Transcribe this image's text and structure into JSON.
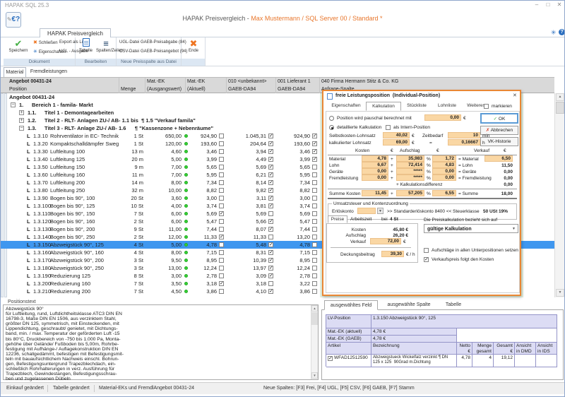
{
  "titlebar": {
    "title": "HAPAK SQL 25.3",
    "minimize": "–",
    "maximize": "□",
    "close": "✕"
  },
  "header": {
    "app": "HAPAK Preisvergleich - ",
    "session": "Max Mustermann / SQL Server 00 / Standard *",
    "logo_glyph": "€?"
  },
  "ribbon": {
    "tab": "HAPAK Preisvergleich",
    "speichern": "Speichern",
    "schliessen": "Schließen",
    "eigenschaften": "Eigenschaften",
    "export_als_liste": "Export als Liste",
    "ugl_ausgabe": "UGL - Ausgabe",
    "tabelle": "Tabelle",
    "spalten_zeilen": "Spalten/Zeilen",
    "ugl_datei": "UGL-Datei",
    "csv_datei": "CSV-Datei",
    "gaeb_preisabgabe": "GAEB-Preisabgabe (84)",
    "gaeb_preisangebot": "GAEB-Preisangebot (94)",
    "ende": "Ende",
    "groups": {
      "dokument": "Dokument",
      "bearbeiten": "Bearbeiten",
      "neue_preisspalte": "Neue Preisspalte aus Datei"
    }
  },
  "subtabs": {
    "material": "Material",
    "fremdleistungen": "Fremdleistungen"
  },
  "table": {
    "header_row1": {
      "c0": "Angebot 00431-24",
      "c2": "Mat.-EK",
      "c3": "Mat.-EK",
      "c4": "010 <unbekannt>",
      "c5": "001 Lieferant 1",
      "c6": "040 Firma Hermann Stitz & Co. KG"
    },
    "header_row2": {
      "c0": "Position",
      "c1": "Menge",
      "c2": "(Ausgangswert)",
      "c3": "(Aktuell)",
      "c4": "GAEB-DA94",
      "c5": "GAEB-DA94",
      "c6": "Anfrage-Spalte"
    },
    "root": "Angebot 00431-24",
    "tree": [
      {
        "expand": "-",
        "num": "1.",
        "text": "Bereich 1 - famila- Markt",
        "indent": 0
      },
      {
        "expand": "+",
        "num": "1.1.",
        "text": "Titel 1 - Demontagearbeiten",
        "indent": 1
      },
      {
        "expand": "+",
        "num": "1.2.",
        "text": "Titel 2 - RLT- Anlagen ZU-/ AB- 1.1 bis  ¶ 1.5 \"Verkauf famila\"",
        "indent": 1
      },
      {
        "expand": "-",
        "num": "1.3.",
        "text": "Titel 3 - RLT- Anlage ZU-/ AB- 1.6      ¶ \"Kassenzone + Nebenräume\"",
        "indent": 1
      }
    ],
    "rows": [
      {
        "id": "1.3.10",
        "desc": "Rohrventilator in EC- Technik, Helios, F",
        "qty": "1 St",
        "v1": "650,00",
        "v2": "924,90",
        "c2": false,
        "v3": "1.045,31",
        "c3": true,
        "v4": "924,90",
        "c4": true,
        "sel": false
      },
      {
        "id": "1.3.20",
        "desc": "Kompaktschalldämpfer Swegon, CLA-A",
        "qty": "1 St",
        "v1": "120,00",
        "v2": "193,60",
        "c2": false,
        "v3": "204,64",
        "c3": true,
        "v4": "193,60",
        "c4": true,
        "sel": false
      },
      {
        "id": "1.3.30",
        "desc": "Luftleitung 100",
        "qty": "13 m",
        "v1": "4,60",
        "v2": "3,46",
        "c2": false,
        "v3": "3,94",
        "c3": true,
        "v4": "3,46",
        "c4": true,
        "sel": false
      },
      {
        "id": "1.3.40",
        "desc": "Luftleitung 125",
        "qty": "20 m",
        "v1": "5,00",
        "v2": "3,99",
        "c2": false,
        "v3": "4,49",
        "c3": true,
        "v4": "3,99",
        "c4": true,
        "sel": false
      },
      {
        "id": "1.3.50",
        "desc": "Luftleitung 150",
        "qty": "9 m",
        "v1": "7,00",
        "v2": "5,65",
        "c2": false,
        "v3": "5,69",
        "c3": true,
        "v4": "5,65",
        "c4": false,
        "sel": false
      },
      {
        "id": "1.3.60",
        "desc": "Luftleitung 160",
        "qty": "11 m",
        "v1": "7,00",
        "v2": "5,95",
        "c2": false,
        "v3": "6,21",
        "c3": true,
        "v4": "5,95",
        "c4": false,
        "sel": false
      },
      {
        "id": "1.3.70",
        "desc": "Luftleitung 200",
        "qty": "14 m",
        "v1": "8,00",
        "v2": "7,34",
        "c2": false,
        "v3": "8,14",
        "c3": true,
        "v4": "7,34",
        "c4": false,
        "sel": false
      },
      {
        "id": "1.3.80",
        "desc": "Luftleitung 250",
        "qty": "32 m",
        "v1": "10,00",
        "v2": "8,82",
        "c2": false,
        "v3": "9,82",
        "c3": true,
        "v4": "8,82",
        "c4": false,
        "sel": false
      },
      {
        "id": "1.3.90",
        "desc": "Bogen bis 90°, 100",
        "qty": "20 St",
        "v1": "3,60",
        "v2": "3,00",
        "c2": false,
        "v3": "3,11",
        "c3": true,
        "v4": "3,00",
        "c4": false,
        "sel": false
      },
      {
        "id": "1.3.100",
        "desc": "Bogen bis 90°, 125",
        "qty": "10 St",
        "v1": "4,00",
        "v2": "3,74",
        "c2": false,
        "v3": "3,81",
        "c3": true,
        "v4": "3,74",
        "c4": false,
        "sel": false
      },
      {
        "id": "1.3.110",
        "desc": "Bogen bis 90°, 150",
        "qty": "7 St",
        "v1": "6,00",
        "v2": "5,69",
        "c2": true,
        "v3": "5,69",
        "c3": false,
        "v4": "5,69",
        "c4": false,
        "sel": false
      },
      {
        "id": "1.3.120",
        "desc": "Bogen bis 90°, 160",
        "qty": "2 St",
        "v1": "6,00",
        "v2": "5,47",
        "c2": false,
        "v3": "5,66",
        "c3": true,
        "v4": "5,47",
        "c4": false,
        "sel": false
      },
      {
        "id": "1.3.130",
        "desc": "Bogen bis 90°, 200",
        "qty": "9 St",
        "v1": "11,00",
        "v2": "7,44",
        "c2": false,
        "v3": "8,07",
        "c3": true,
        "v4": "7,44",
        "c4": false,
        "sel": false
      },
      {
        "id": "1.3.140",
        "desc": "Bogen bis 90°, 250",
        "qty": "2 St",
        "v1": "12,00",
        "v2": "11,33",
        "c2": true,
        "v3": "11,33",
        "c3": false,
        "v4": "13,20",
        "c4": false,
        "sel": false
      },
      {
        "id": "1.3.150",
        "desc": "Abzweigstück 90°, 125",
        "qty": "4 St",
        "v1": "5,00",
        "v2": "4,78",
        "c2": false,
        "v3": "5,48",
        "c3": true,
        "v4": "4,78",
        "c4": false,
        "sel": true
      },
      {
        "id": "1.3.160",
        "desc": "Abzweigstück 90°, 160",
        "qty": "4 St",
        "v1": "8,00",
        "v2": "7,15",
        "c2": false,
        "v3": "8,31",
        "c3": true,
        "v4": "7,15",
        "c4": false,
        "sel": false
      },
      {
        "id": "1.3.170",
        "desc": "Abzweigstück 90°, 200",
        "qty": "3 St",
        "v1": "9,50",
        "v2": "8,95",
        "c2": false,
        "v3": "10,39",
        "c3": true,
        "v4": "8,95",
        "c4": false,
        "sel": false
      },
      {
        "id": "1.3.180",
        "desc": "Abzweigstück 90°, 250",
        "qty": "3 St",
        "v1": "13,00",
        "v2": "12,24",
        "c2": false,
        "v3": "13,97",
        "c3": true,
        "v4": "12,24",
        "c4": false,
        "sel": false
      },
      {
        "id": "1.3.190",
        "desc": "Reduzierung 125",
        "qty": "8 St",
        "v1": "3,00",
        "v2": "2,78",
        "c2": false,
        "v3": "3,09",
        "c3": true,
        "v4": "2,78",
        "c4": false,
        "sel": false
      },
      {
        "id": "1.3.200",
        "desc": "Reduzierung 160",
        "qty": "7 St",
        "v1": "3,50",
        "v2": "3,18",
        "c2": true,
        "v3": "3,18",
        "c3": false,
        "v4": "3,22",
        "c4": false,
        "sel": false
      },
      {
        "id": "1.3.210",
        "desc": "Reduzierung 200",
        "qty": "7 St",
        "v1": "4,50",
        "v2": "3,86",
        "c2": false,
        "v3": "4,10",
        "c3": true,
        "v4": "3,86",
        "c4": false,
        "sel": false
      }
    ]
  },
  "dialog": {
    "title": "freie Leistungsposition  (Individual-Position)",
    "close": "✕",
    "tabs": [
      "Eigenschaften",
      "Kalkulation",
      "Stückliste",
      "Lohnliste",
      "Weiteres"
    ],
    "markieren": "markieren",
    "pauschal_label": "Position wird pauschal berechnet mit",
    "pauschal_value": "0,00",
    "euro": "€",
    "ok": "OK",
    "abbrechen": "Abbrechen",
    "vk_historie": "VK-Historie",
    "detailliert_label": "detaillierte Kalkulation",
    "intern_label": "als Intern-Position",
    "selbstkosten_label": "Selbstkosten-Lohnsatz",
    "selbstkosten_value": "40,02",
    "zeitbedarf_label": "Zeitbedarf",
    "zeitbedarf_value": "10",
    "zeitbedarf_unit": "min",
    "kalk_lohnsatz_label": "kalkulierter Lohnsatz",
    "kalk_lohnsatz_value": "69,00",
    "eq": "=",
    "zeit_h_value": "0,16667",
    "zeit_h_unit": "h",
    "plus": "+",
    "pct": "%",
    "col_kosten": "Kosten",
    "col_aufschlag": "Aufschlag",
    "col_verkauf": "Verkauf",
    "cost_rows": [
      {
        "label": "Material",
        "kosten": "4,78",
        "aufschlag": "35,983",
        "betrag": "1,72",
        "eq_label": "= Material",
        "verkauf": "6,50",
        "vk_field": true
      },
      {
        "label": "Lohn",
        "kosten": "6,67",
        "aufschlag": "72,414",
        "betrag": "4,83",
        "eq_label": "= Lohn",
        "verkauf": "11,50",
        "vk_field": false
      },
      {
        "label": "Geräte",
        "kosten": "0,00",
        "aufschlag": "*****",
        "betrag": "0,00",
        "eq_label": "= Geräte",
        "verkauf": "0,00",
        "vk_field": false
      },
      {
        "label": "Fremdleistung",
        "kosten": "0,00",
        "aufschlag": "*****",
        "betrag": "0,00",
        "eq_label": "= Fremdleistung",
        "verkauf": "0,00",
        "vk_field": false
      }
    ],
    "kalkdiff_label": "+ Kalkulationsdifferenz",
    "kalkdiff_value": "0,00",
    "summe": {
      "label": "Summe Kosten",
      "kosten": "11,45",
      "aufschlag": "57,205",
      "betrag": "6,55",
      "eq_label": "= Summe",
      "verkauf": "18,00"
    },
    "ust_group": "Umsatzsteuer und Kontenzuordnung",
    "erloeskonto_label": "Erlöskonto",
    "standard_erloeskonto": ">> Standarderlöskonto 8400 <<",
    "steuerklasse_label": "Steuerklasse",
    "steuerklasse_value": "50 USt 19%",
    "preise_tab": "Preise",
    "arbeitszeit_tab": "Arbeitszeit",
    "bei_label": "bei",
    "bei_value": "4 St",
    "kosten_label": "Kosten",
    "kosten_value": "45,80 €",
    "aufschlag_label": "Aufschlag",
    "aufschlag_value": "26,20 €",
    "verkauf_label": "Verkauf",
    "verkauf_value": "72,00",
    "deckungsbeitrag_label": "Deckungsbeitrag",
    "deckungsbeitrag_value": "39,30",
    "deckungsbeitrag_unit": "€ / h",
    "preiskalk_label": "Die Preiskalkulation bezieht sich auf",
    "preiskalk_value": "gültige Kalkulation",
    "cb1_label": "Aufschläge in allen Unterpositionen setzen",
    "cb2_label": "Verkaufspreis folgt den Kosten"
  },
  "positionstext": {
    "label": "Positionstext",
    "text": "Abzweigstück 90°\nfür Luftleitung, rund, Luftdichtheitsklasse ATC3 DIN EN\n16798-3, Maße DIN EN 1506, aus verzinktem Stahl,\ngrößter DN 125, symmetrisch, mit Einsteckenden, mit\nLippendichtung, geschraubt/ genietet, mit Dichtungs-\nband, min. / max. Temperatur der geförderten Luft -15\nbis 80°C, Druckbereich von -750 bis 1.000 Pa, Monta-\ngehöhe über Gelände/ Fußboden bis 5,00m, Rohrbe-\nfestigung mit Aufhänge-/ Auflagekonstruktion DIN EN\n12236, schallgedämmt, befestigen mit Befestigungsmit-\nteln mit bauaufsichtlichem Nachweis einschl. Bohrun-\ngen, Befestigungsuntergrund Trapezblechdach, ein-\nschließlich Rohrhalterungen in verz. Ausführung für\nTrapezblech, Gewindestangen, Befestigungsschrau-\nben und zugelassenen Dübeln"
  },
  "detail": {
    "tabs": [
      "ausgewähltes Feld",
      "ausgewählte Spalte",
      "Tabelle"
    ],
    "lv_label": "LV-Position",
    "lv_value": "1.3.150 Abzweigstück 90°, 125",
    "matek_aktuell_label": "Mat.-EK (aktuell)",
    "matek_aktuell_value": "4,78 €",
    "matek_gaeb_label": "Mat.-EK (GAEB)",
    "matek_gaeb_value": "4,78 €",
    "col_artikel": "Artikel",
    "col_bezeichnung": "Bezeichnung",
    "col_netto": "Netto\n€",
    "col_menge": "Menge\ngesamt",
    "col_gesamt": "Gesamt\n€",
    "col_dmd": "Ansicht\nin DMD",
    "col_ids": "Ansicht\nin IDS",
    "article": {
      "artikel": "WFAD12512590",
      "bezeichnung": "Abzweigstueck Wickelfalz verzinkt ¶ DN\n125 x 125  90Grad m.Dichtung",
      "netto": "4,78",
      "menge": "4",
      "gesamt": "19,12"
    }
  },
  "statusbar": {
    "s1": "Einkauf geändert",
    "s2": "Tabelle geändert",
    "s3": "Material-EKs und FremdlAngebot 00431-24",
    "s4": "Neue Spalten: [F3] Frei, [F4] UGL, [F5] CSV, [F6] GAEB, [F7] Stamm"
  }
}
